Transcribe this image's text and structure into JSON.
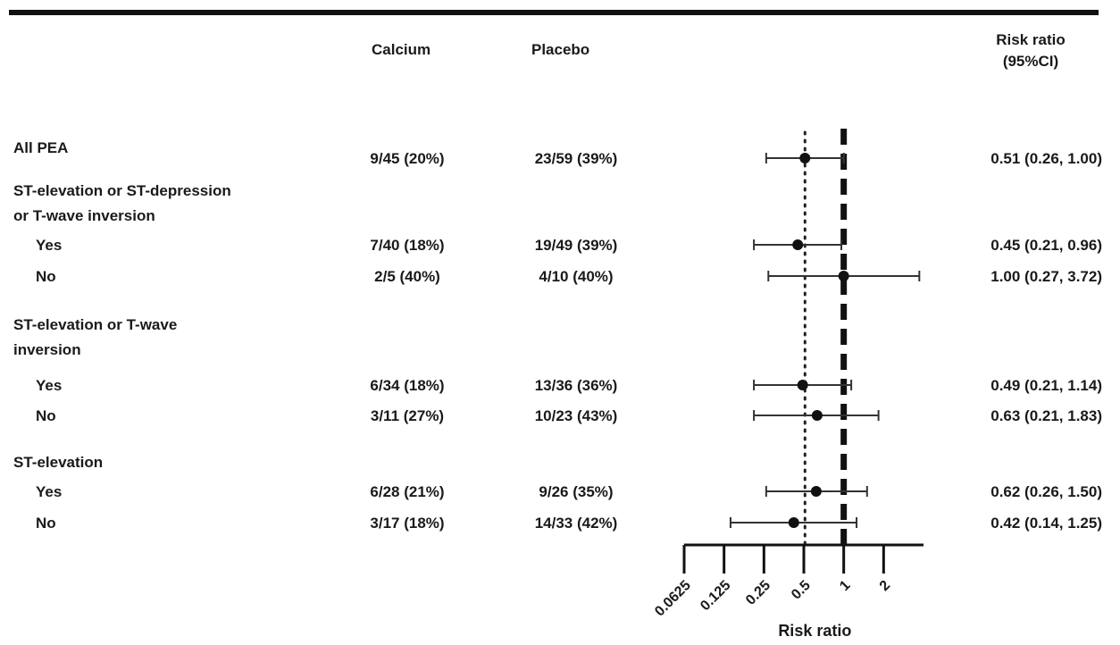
{
  "headers": {
    "calcium": "Calcium",
    "placebo": "Placebo",
    "risk_ratio_line1": "Risk ratio",
    "risk_ratio_line2": "(95%CI)"
  },
  "groups": [
    {
      "label_lines": [
        "All PEA"
      ]
    },
    {
      "label_lines": [
        "ST-elevation or ST-depression",
        "or T-wave inversion"
      ]
    },
    {
      "label_lines": [
        "ST-elevation or T-wave",
        "inversion"
      ]
    },
    {
      "label_lines": [
        "ST-elevation"
      ]
    }
  ],
  "rows": [
    {
      "label": "",
      "calcium": "9/45 (20%)",
      "placebo": "23/59 (39%)",
      "rr_text": "0.51 (0.26, 1.00)"
    },
    {
      "label": "Yes",
      "calcium": "7/40 (18%)",
      "placebo": "19/49 (39%)",
      "rr_text": "0.45 (0.21, 0.96)"
    },
    {
      "label": "No",
      "calcium": "2/5 (40%)",
      "placebo": "4/10 (40%)",
      "rr_text": "1.00 (0.27, 3.72)"
    },
    {
      "label": "Yes",
      "calcium": "6/34 (18%)",
      "placebo": "13/36 (36%)",
      "rr_text": "0.49 (0.21, 1.14)"
    },
    {
      "label": "No",
      "calcium": "3/11 (27%)",
      "placebo": "10/23 (43%)",
      "rr_text": "0.63 (0.21, 1.83)"
    },
    {
      "label": "Yes",
      "calcium": "6/28 (21%)",
      "placebo": "9/26 (35%)",
      "rr_text": "0.62 (0.26, 1.50)"
    },
    {
      "label": "No",
      "calcium": "3/17 (18%)",
      "placebo": "14/33 (42%)",
      "rr_text": "0.42 (0.14, 1.25)"
    }
  ],
  "chart_data": {
    "type": "forest",
    "xscale": "log2",
    "xlim": [
      0.0625,
      4
    ],
    "xticks": [
      0.0625,
      0.125,
      0.25,
      0.5,
      1,
      2
    ],
    "xtick_labels": [
      "0.0625",
      "0.125",
      "0.25",
      "0.5",
      "1",
      "2"
    ],
    "xlabel": "Risk ratio",
    "reference_line": 1,
    "pooled_line": 0.51,
    "points": [
      {
        "est": 0.51,
        "lo": 0.26,
        "hi": 1.0
      },
      {
        "est": 0.45,
        "lo": 0.21,
        "hi": 0.96
      },
      {
        "est": 1.0,
        "lo": 0.27,
        "hi": 3.72
      },
      {
        "est": 0.49,
        "lo": 0.21,
        "hi": 1.14
      },
      {
        "est": 0.63,
        "lo": 0.21,
        "hi": 1.83
      },
      {
        "est": 0.62,
        "lo": 0.26,
        "hi": 1.5
      },
      {
        "est": 0.42,
        "lo": 0.14,
        "hi": 1.25
      }
    ]
  }
}
